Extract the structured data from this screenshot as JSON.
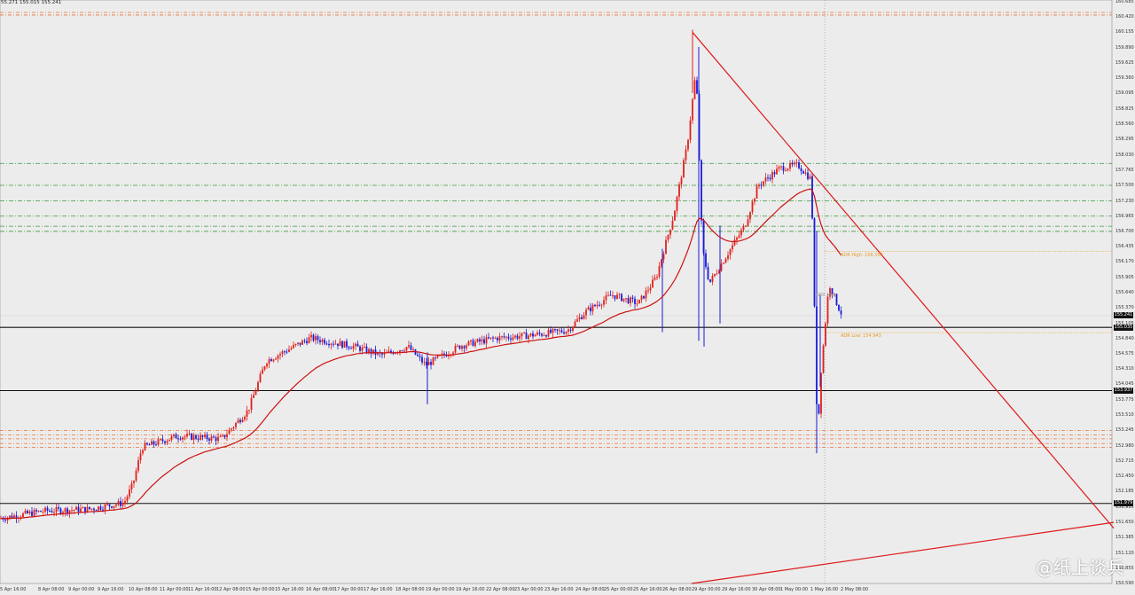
{
  "header": {
    "quote": "55.271 155.015 155.241"
  },
  "price_axis": {
    "labels": [
      "160.685",
      "160.420",
      "160.155",
      "159.890",
      "159.625",
      "159.360",
      "159.095",
      "158.825",
      "158.560",
      "158.295",
      "158.030",
      "157.765",
      "157.500",
      "157.230",
      "156.965",
      "156.700",
      "156.435",
      "156.170",
      "155.905",
      "155.640",
      "155.370",
      "155.105",
      "154.840",
      "154.575",
      "154.310",
      "154.045",
      "153.775",
      "153.510",
      "153.245",
      "152.980",
      "152.715",
      "152.450",
      "152.185",
      "151.915",
      "151.650",
      "151.385",
      "151.120",
      "150.855",
      "150.590"
    ],
    "tags": [
      "155.241",
      "155.035",
      "153.937",
      "151.979"
    ]
  },
  "time_axis": [
    "5 Apr 16:00",
    "8 Apr 08:00",
    "9 Apr 00:00",
    "9 Apr 16:00",
    "10 Apr 08:00",
    "11 Apr 00:00",
    "11 Apr 16:00",
    "12 Apr 08:00",
    "15 Apr 00:00",
    "15 Apr 16:00",
    "16 Apr 08:00",
    "17 Apr 00:00",
    "17 Apr 16:00",
    "18 Apr 08:00",
    "19 Apr 00:00",
    "19 Apr 16:00",
    "22 Apr 08:00",
    "23 Apr 00:00",
    "23 Apr 16:00",
    "24 Apr 08:00",
    "25 Apr 00:00",
    "25 Apr 16:00",
    "26 Apr 08:00",
    "29 Apr 00:00",
    "29 Apr 16:00",
    "30 Apr 08:00",
    "1 May 00:00",
    "1 May 16:00",
    "2 May 08:00"
  ],
  "annotations": {
    "adr_high": "ADR High: 156.353",
    "adr_low": "ADR Low: 154.943",
    "adr_mid": "ADR Mid"
  },
  "watermark": "@纸上谈兵",
  "colors": {
    "background": "#ececec",
    "bull_candle": "#e0201c",
    "bear_candle": "#1a1ad8",
    "moving_average": "#cc1111",
    "trendline": "#dd1a1a",
    "support_resistance": "#111111",
    "green_levels": "#3a9a3a",
    "orange_levels": "#e8733a",
    "adr_lines": "#f0b050"
  },
  "chart_data": {
    "type": "candlestick",
    "symbol_quote": "55.271 155.015 155.241",
    "y_range": [
      150.59,
      160.685
    ],
    "x_range": [
      "5 Apr 16:00",
      "2 May 08:00"
    ],
    "horizontal_levels": {
      "black_solid": [
        155.035,
        153.937,
        151.979
      ],
      "green_dashed": [
        157.88,
        157.5,
        157.23,
        156.965,
        156.79,
        156.7
      ],
      "orange_dashed": [
        160.5,
        160.455,
        153.245,
        153.17,
        153.1,
        153.02,
        152.95
      ],
      "adr": {
        "high": 156.353,
        "low": 154.943
      }
    },
    "trendlines": [
      {
        "from": [
          "29 Apr 00:00",
          160.155
        ],
        "to": [
          "2 May 08:00+",
          151.65
        ]
      },
      {
        "from": [
          "29 Apr 00:00",
          150.6
        ],
        "to": [
          "2 May 08:00+",
          151.65
        ]
      }
    ],
    "moving_average": {
      "color": "#cc1111",
      "shape": "smooth rising, peaks ~157.2 then turns down"
    },
    "price_path": [
      [
        0,
        151.72
      ],
      [
        50,
        151.85
      ],
      [
        100,
        151.88
      ],
      [
        140,
        151.99
      ],
      [
        150,
        152.32
      ],
      [
        160,
        152.95
      ],
      [
        200,
        153.15
      ],
      [
        250,
        153.1
      ],
      [
        280,
        153.6
      ],
      [
        300,
        154.45
      ],
      [
        350,
        154.85
      ],
      [
        400,
        154.7
      ],
      [
        430,
        154.55
      ],
      [
        460,
        154.7
      ],
      [
        480,
        154.38
      ],
      [
        520,
        154.72
      ],
      [
        560,
        154.85
      ],
      [
        600,
        154.9
      ],
      [
        640,
        154.98
      ],
      [
        660,
        155.3
      ],
      [
        690,
        155.6
      ],
      [
        720,
        155.45
      ],
      [
        740,
        155.9
      ],
      [
        760,
        157.0
      ],
      [
        775,
        158.2
      ],
      [
        785,
        159.5
      ],
      [
        792,
        156.4
      ],
      [
        800,
        155.8
      ],
      [
        820,
        156.3
      ],
      [
        840,
        156.8
      ],
      [
        855,
        157.5
      ],
      [
        880,
        157.8
      ],
      [
        900,
        157.85
      ],
      [
        915,
        157.6
      ],
      [
        922,
        153.1
      ],
      [
        926,
        154.3
      ],
      [
        935,
        155.8
      ],
      [
        945,
        155.4
      ],
      [
        950,
        155.24
      ]
    ]
  }
}
